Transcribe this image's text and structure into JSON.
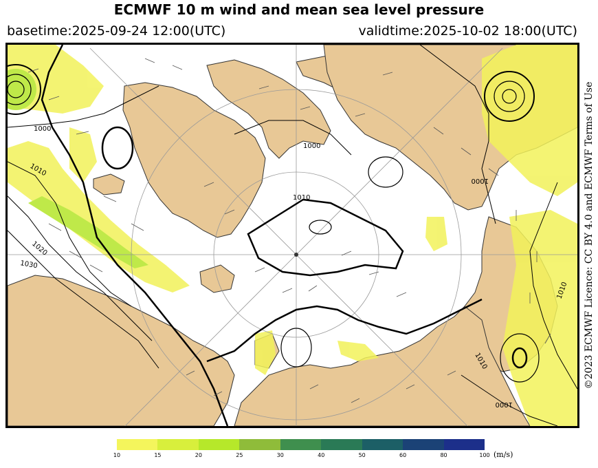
{
  "header": {
    "title": "ECMWF 10 m wind and mean sea level pressure",
    "basetime": "basetime:2025-09-24 12:00(UTC)",
    "validtime": "validtime:2025-10-02 18:00(UTC)"
  },
  "licence": "©2023 ECMWF Licence: CC BY 4.0 and ECMWF Terms of Use",
  "map": {
    "isobar_labels": [
      "1000",
      "1010",
      "1020",
      "1030",
      "1000",
      "1010",
      "1010",
      "1000",
      "1000",
      "1010"
    ],
    "colors": {
      "land": "#e8c896",
      "sea": "#ffffff",
      "wind_10": "#f2f25a",
      "wind_20": "#b4e62a",
      "isobar": "#000000"
    }
  },
  "colorbar": {
    "units": "(m/s)",
    "ticks": [
      "10",
      "15",
      "20",
      "25",
      "30",
      "40",
      "50",
      "60",
      "80",
      "100"
    ],
    "colors": [
      "#f4f55c",
      "#d8ef3c",
      "#b6e82a",
      "#8fbc3a",
      "#3f8f4e",
      "#2a7a56",
      "#1c5f66",
      "#1b4276",
      "#1c2f8a",
      "#2a31b0"
    ]
  }
}
